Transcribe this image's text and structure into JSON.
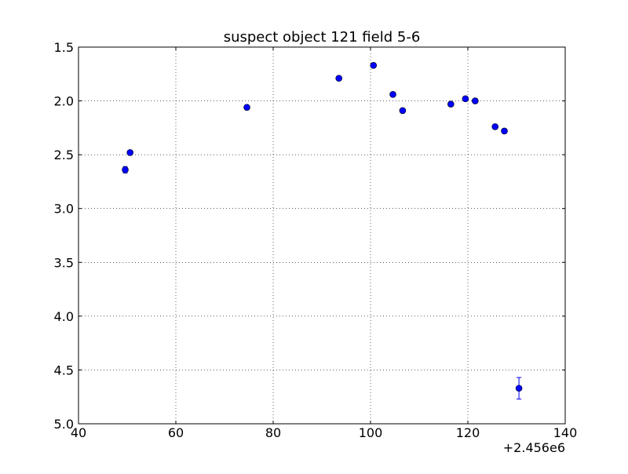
{
  "chart_data": {
    "type": "scatter",
    "title": "suspect object 121 field 5-6",
    "xlabel": "",
    "ylabel": "",
    "x_offset_label": "+2.456e6",
    "xlim": [
      40,
      140
    ],
    "ylim": [
      5.0,
      1.5
    ],
    "y_inverted": true,
    "grid": true,
    "x_ticks": [
      "40",
      "60",
      "80",
      "100",
      "120",
      "140"
    ],
    "y_ticks": [
      "1.5",
      "2.0",
      "2.5",
      "3.0",
      "3.5",
      "4.0",
      "4.5",
      "5.0"
    ],
    "marker_color": "#0000ff",
    "series": [
      {
        "points": [
          {
            "x": 49.6,
            "y": 2.64,
            "yerr": 0.03
          },
          {
            "x": 50.6,
            "y": 2.48,
            "yerr": 0.02
          },
          {
            "x": 74.6,
            "y": 2.06,
            "yerr": 0.02
          },
          {
            "x": 93.5,
            "y": 1.79,
            "yerr": 0.02
          },
          {
            "x": 100.6,
            "y": 1.67,
            "yerr": 0.02
          },
          {
            "x": 104.6,
            "y": 1.94,
            "yerr": 0.02
          },
          {
            "x": 106.6,
            "y": 2.09,
            "yerr": 0.02
          },
          {
            "x": 116.5,
            "y": 2.03,
            "yerr": 0.02
          },
          {
            "x": 119.5,
            "y": 1.98,
            "yerr": 0.02
          },
          {
            "x": 121.5,
            "y": 2.0,
            "yerr": 0.02
          },
          {
            "x": 125.6,
            "y": 2.24,
            "yerr": 0.02
          },
          {
            "x": 127.5,
            "y": 2.28,
            "yerr": 0.02
          },
          {
            "x": 130.5,
            "y": 4.67,
            "yerr": 0.1
          }
        ]
      }
    ]
  }
}
